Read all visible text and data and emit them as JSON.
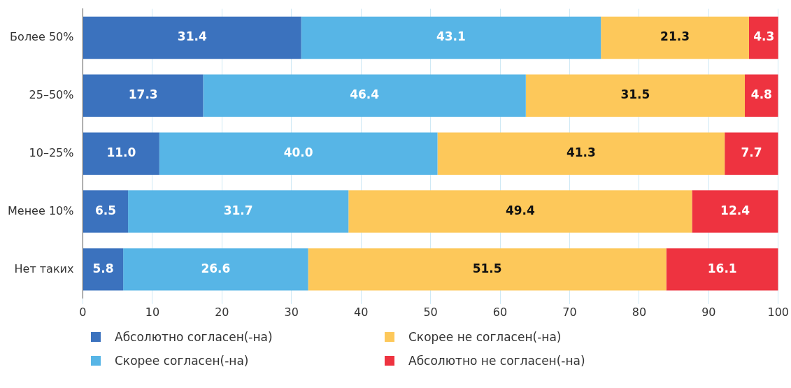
{
  "chart_data": {
    "type": "bar",
    "orientation": "horizontal",
    "stacked": true,
    "categories": [
      "Более 50%",
      "25–50%",
      "10–25%",
      "Менее 10%",
      "Нет таких"
    ],
    "xlim": [
      0,
      100
    ],
    "xticks": [
      0,
      10,
      20,
      30,
      40,
      50,
      60,
      70,
      80,
      90,
      100
    ],
    "grid": "x",
    "legend": "bottom",
    "series": [
      {
        "name": "Абсолютно согласен(-на)",
        "color": "#3b72be",
        "values": [
          31.4,
          17.3,
          11.0,
          6.5,
          5.8
        ],
        "value_labels": [
          "31.4",
          "17.3",
          "11.0",
          "6.5",
          "5.8"
        ]
      },
      {
        "name": "Скорее согласен(-на)",
        "color": "#57b5e6",
        "values": [
          43.1,
          46.4,
          40.0,
          31.7,
          26.6
        ],
        "value_labels": [
          "43.1",
          "46.4",
          "40.0",
          "31.7",
          "26.6"
        ]
      },
      {
        "name": "Скорее не согласен(-на)",
        "color": "#fdc85a",
        "values": [
          21.3,
          31.5,
          41.3,
          49.4,
          51.5
        ],
        "value_labels": [
          "21.3",
          "31.5",
          "41.3",
          "49.4",
          "51.5"
        ]
      },
      {
        "name": "Абсолютно не согласен(-на)",
        "color": "#ee3340",
        "values": [
          4.3,
          4.8,
          7.7,
          12.4,
          16.1
        ],
        "value_labels": [
          "4.3",
          "4.8",
          "7.7",
          "12.4",
          "16.1"
        ]
      }
    ]
  }
}
